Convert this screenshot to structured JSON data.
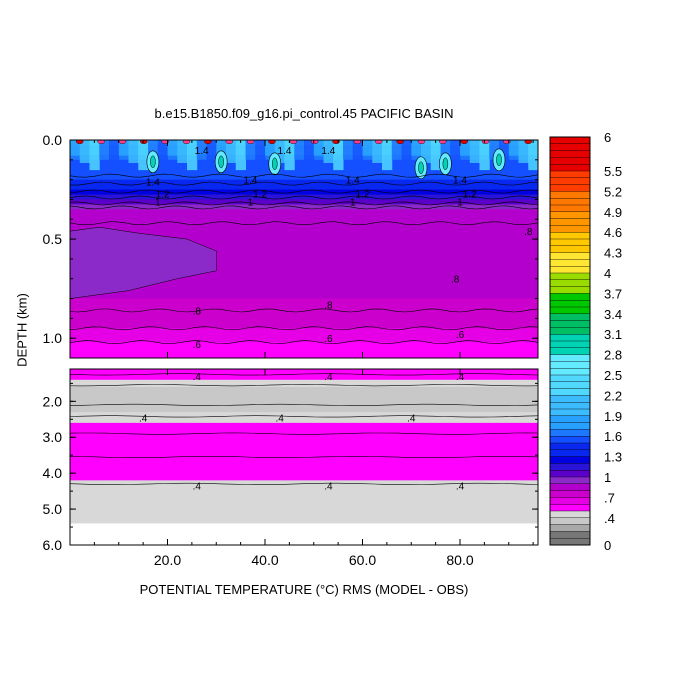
{
  "chart_data": {
    "type": "heatmap",
    "title": "b.e15.B1850.f09_g16.pi_control.45 PACIFIC BASIN",
    "xlabel": "POTENTIAL TEMPERATURE (°C) RMS (MODEL - OBS)",
    "ylabel": "DEPTH (km)",
    "xlim": [
      0,
      96
    ],
    "x_ticks": [
      "20.0",
      "40.0",
      "60.0",
      "80.0"
    ],
    "x_tick_values": [
      20,
      40,
      60,
      80
    ],
    "upper_panel": {
      "ylim": [
        0,
        1.1
      ],
      "y_ticks": [
        "0.0",
        "0.5",
        "1.0"
      ],
      "y_tick_values": [
        0,
        0.5,
        1.0
      ]
    },
    "lower_panel": {
      "ylim": [
        1.1,
        6.0
      ],
      "y_ticks": [
        "2.0",
        "3.0",
        "4.0",
        "5.0",
        "6.0"
      ],
      "y_tick_values": [
        2,
        3,
        4,
        5,
        6
      ]
    },
    "depth_profile": [
      {
        "depth": 0.0,
        "value": 2.0
      },
      {
        "depth": 0.05,
        "value": 1.8
      },
      {
        "depth": 0.1,
        "value": 1.6
      },
      {
        "depth": 0.18,
        "value": 1.5
      },
      {
        "depth": 0.25,
        "value": 1.3
      },
      {
        "depth": 0.3,
        "value": 1.1
      },
      {
        "depth": 0.35,
        "value": 0.9
      },
      {
        "depth": 0.45,
        "value": 0.85
      },
      {
        "depth": 0.6,
        "value": 0.82
      },
      {
        "depth": 0.8,
        "value": 0.8
      },
      {
        "depth": 0.95,
        "value": 0.7
      },
      {
        "depth": 1.1,
        "value": 0.6
      },
      {
        "depth": 1.2,
        "value": 0.55
      },
      {
        "depth": 1.5,
        "value": 0.45
      },
      {
        "depth": 1.8,
        "value": 0.35
      },
      {
        "depth": 2.1,
        "value": 0.3
      },
      {
        "depth": 2.4,
        "value": 0.45
      },
      {
        "depth": 2.8,
        "value": 0.55
      },
      {
        "depth": 3.5,
        "value": 0.55
      },
      {
        "depth": 4.2,
        "value": 0.5
      },
      {
        "depth": 4.4,
        "value": 0.4
      },
      {
        "depth": 5.4,
        "value": 0.4
      }
    ],
    "contour_labels": {
      "upper": [
        {
          "text": "1.4",
          "x": 27,
          "depth": 0.05
        },
        {
          "text": "1.4",
          "x": 44,
          "depth": 0.05
        },
        {
          "text": "1.4",
          "x": 53,
          "depth": 0.05
        },
        {
          "text": "1.4",
          "x": 17,
          "depth": 0.21
        },
        {
          "text": "1.2",
          "x": 19,
          "depth": 0.27
        },
        {
          "text": "1",
          "x": 18,
          "depth": 0.31
        },
        {
          "text": "1.4",
          "x": 37,
          "depth": 0.2
        },
        {
          "text": "1.2",
          "x": 39,
          "depth": 0.27
        },
        {
          "text": "1",
          "x": 37,
          "depth": 0.31
        },
        {
          "text": "1.4",
          "x": 58,
          "depth": 0.2
        },
        {
          "text": "1.2",
          "x": 60,
          "depth": 0.27
        },
        {
          "text": "1",
          "x": 58,
          "depth": 0.31
        },
        {
          "text": "1.4",
          "x": 80,
          "depth": 0.2
        },
        {
          "text": "1.2",
          "x": 82,
          "depth": 0.27
        },
        {
          "text": "1",
          "x": 80,
          "depth": 0.31
        },
        {
          "text": ".8",
          "x": 94,
          "depth": 0.46
        },
        {
          "text": ".8",
          "x": 79,
          "depth": 0.7
        },
        {
          "text": ".8",
          "x": 26,
          "depth": 0.86
        },
        {
          "text": ".8",
          "x": 53,
          "depth": 0.83
        },
        {
          "text": ".6",
          "x": 26,
          "depth": 1.03
        },
        {
          "text": ".6",
          "x": 53,
          "depth": 1.0
        },
        {
          "text": ".6",
          "x": 80,
          "depth": 0.98
        }
      ],
      "lower": [
        {
          "text": ".4",
          "x": 26,
          "depth": 1.3
        },
        {
          "text": ".4",
          "x": 53,
          "depth": 1.3
        },
        {
          "text": ".4",
          "x": 80,
          "depth": 1.3
        },
        {
          "text": ".4",
          "x": 15,
          "depth": 2.45
        },
        {
          "text": ".4",
          "x": 43,
          "depth": 2.45
        },
        {
          "text": ".4",
          "x": 70,
          "depth": 2.45
        },
        {
          "text": ".4",
          "x": 26,
          "depth": 4.35
        },
        {
          "text": ".4",
          "x": 53,
          "depth": 4.35
        },
        {
          "text": ".4",
          "x": 80,
          "depth": 4.35
        }
      ]
    },
    "colorbar": {
      "labels": [
        "6",
        "5.5",
        "5.2",
        "4.9",
        "4.6",
        "4.3",
        "4",
        "3.7",
        "3.4",
        "3.1",
        "2.8",
        "2.5",
        "2.2",
        "1.9",
        "1.6",
        "1.3",
        "1",
        ".7",
        ".4",
        "0"
      ],
      "label_values": [
        6,
        5.5,
        5.2,
        4.9,
        4.6,
        4.3,
        4,
        3.7,
        3.4,
        3.1,
        2.8,
        2.5,
        2.2,
        1.9,
        1.6,
        1.3,
        1,
        0.7,
        0.4,
        0
      ]
    }
  }
}
